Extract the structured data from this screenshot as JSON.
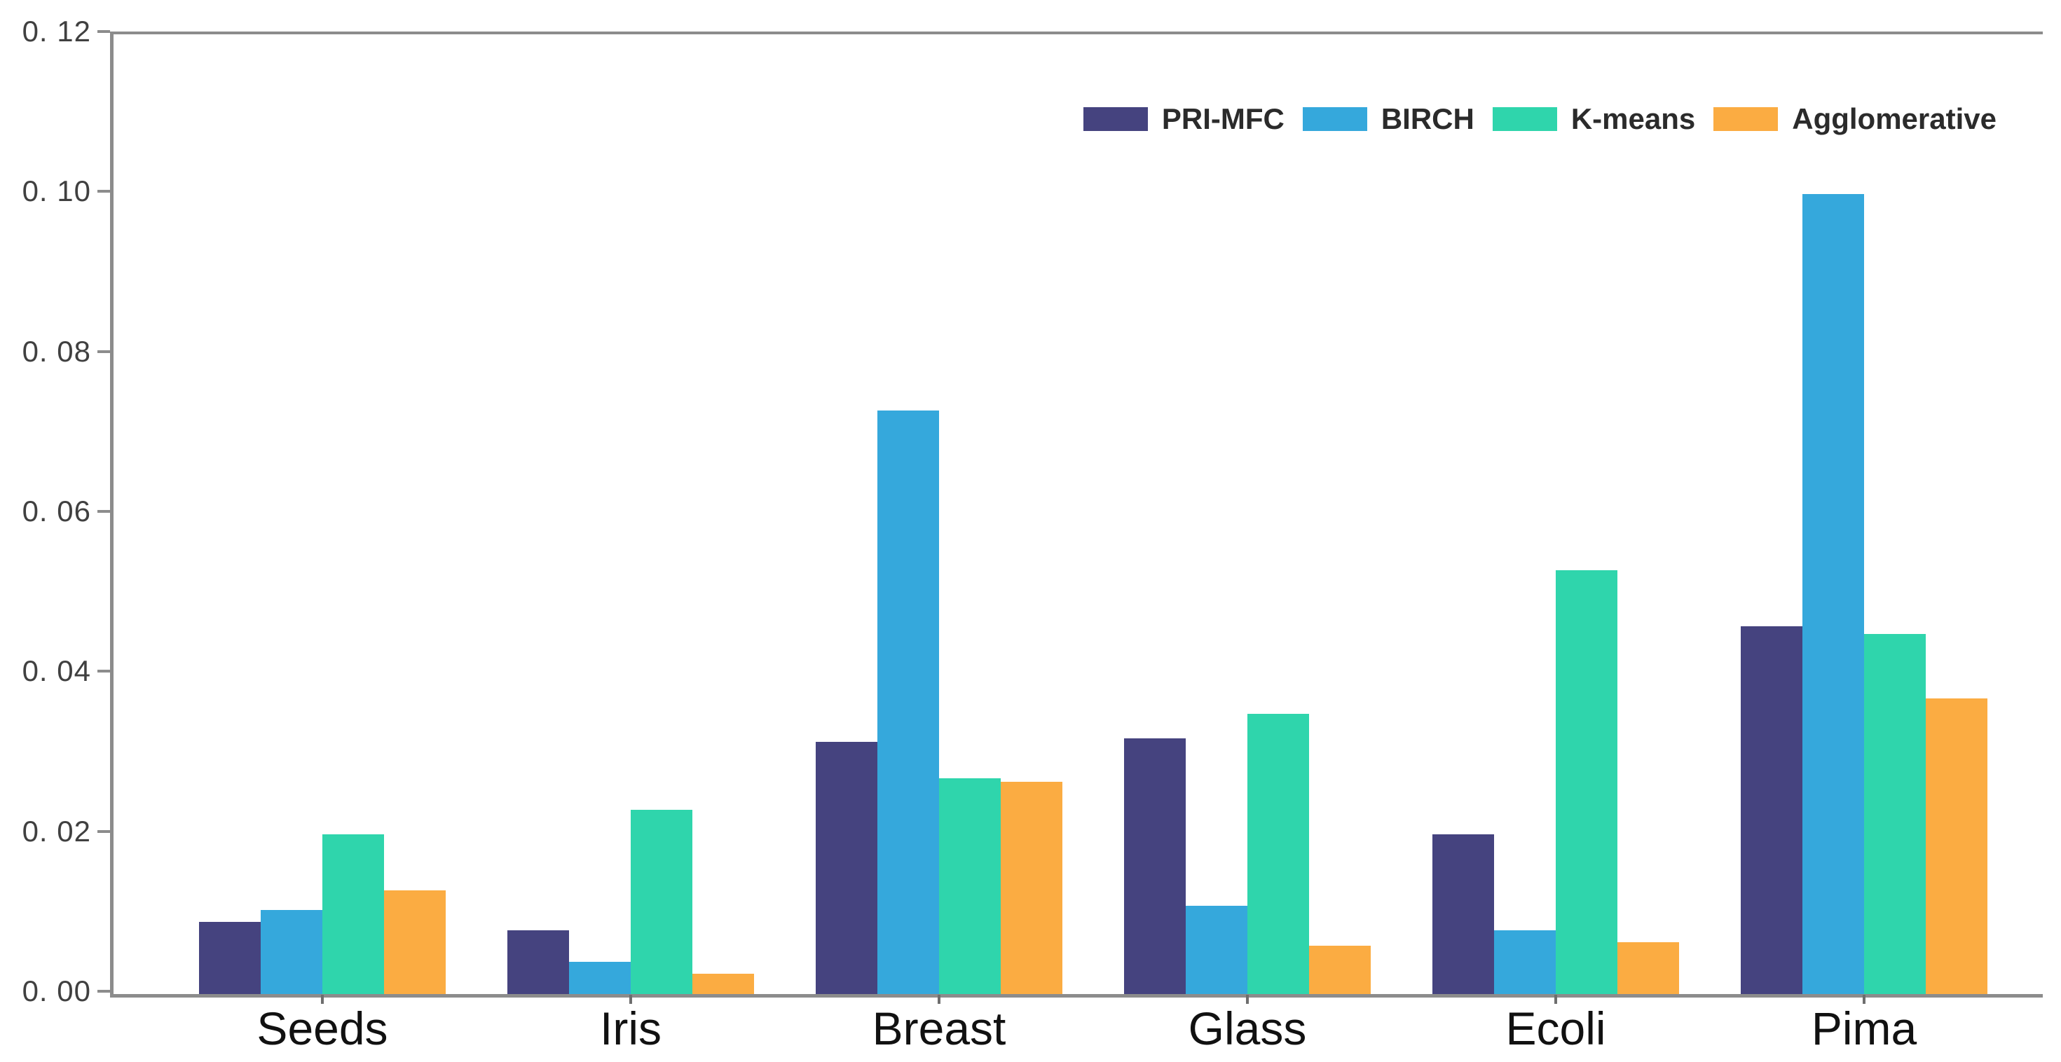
{
  "chart_data": {
    "type": "bar",
    "title": "",
    "xlabel": "",
    "ylabel": "",
    "categories": [
      "Seeds",
      "Iris",
      "Breast",
      "Glass",
      "Ecoli",
      "Pima"
    ],
    "series": [
      {
        "name": "PRI-MFC",
        "color": "#45437f",
        "values": [
          0.009,
          0.008,
          0.0315,
          0.032,
          0.02,
          0.046
        ]
      },
      {
        "name": "BIRCH",
        "color": "#35a8dc",
        "values": [
          0.0105,
          0.004,
          0.073,
          0.011,
          0.008,
          0.1
        ]
      },
      {
        "name": "K-means",
        "color": "#2fd5ac",
        "values": [
          0.02,
          0.023,
          0.027,
          0.035,
          0.053,
          0.045
        ]
      },
      {
        "name": "Agglomerative",
        "color": "#fbac42",
        "values": [
          0.013,
          0.0025,
          0.0265,
          0.006,
          0.0065,
          0.037
        ]
      }
    ],
    "ylim": [
      0,
      0.12
    ],
    "y_ticks": [
      {
        "value": 0.0,
        "label": "0. 00"
      },
      {
        "value": 0.02,
        "label": "0. 02"
      },
      {
        "value": 0.04,
        "label": "0. 04"
      },
      {
        "value": 0.06,
        "label": "0. 06"
      },
      {
        "value": 0.08,
        "label": "0. 08"
      },
      {
        "value": 0.1,
        "label": "0. 10"
      },
      {
        "value": 0.12,
        "label": "0. 12"
      }
    ],
    "grid": false,
    "legend_position": "top-right",
    "axis_color": "#8c8c8c",
    "background": "#ffffff"
  }
}
